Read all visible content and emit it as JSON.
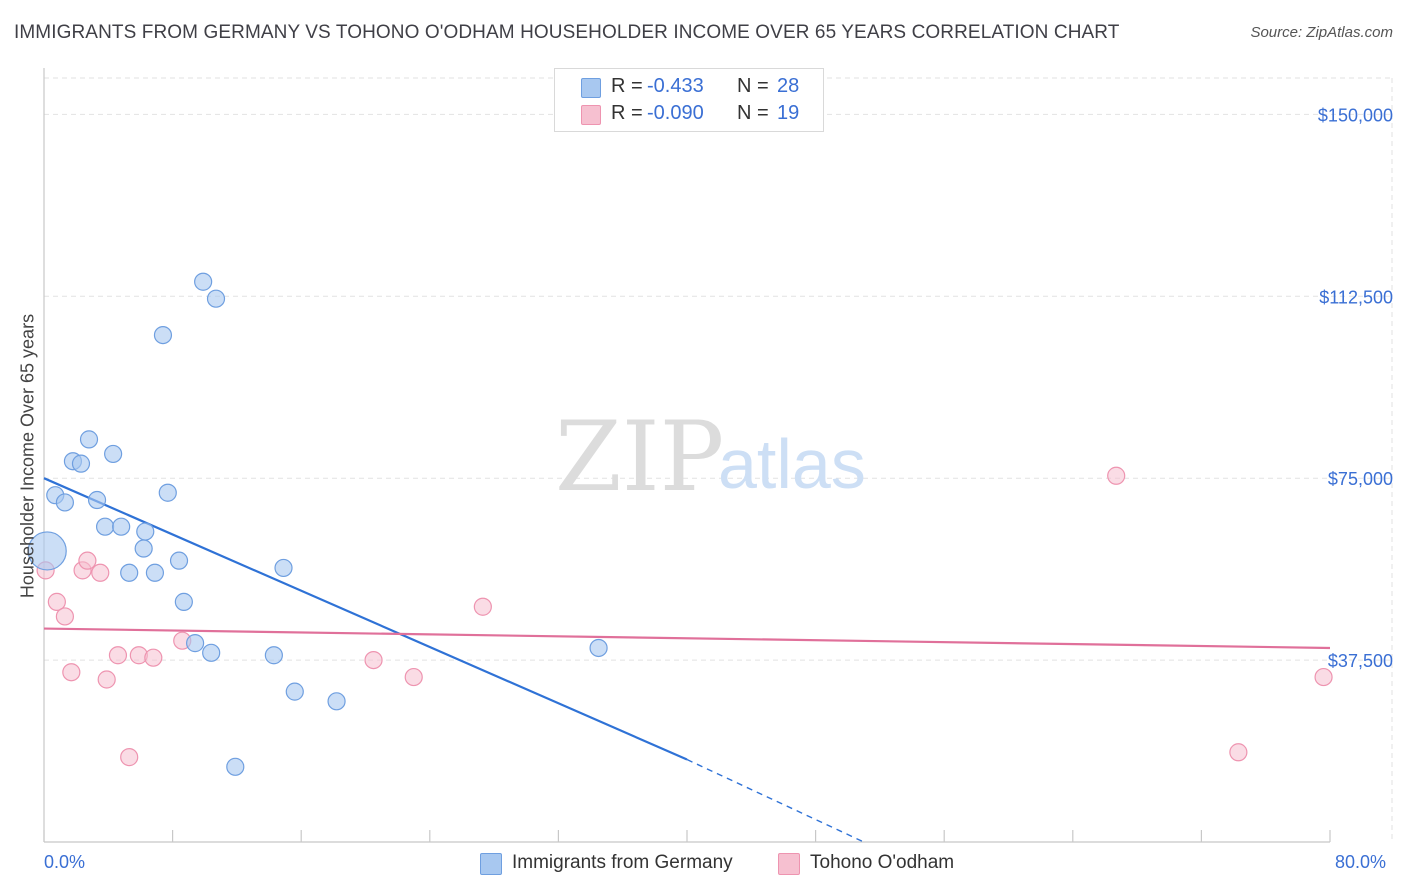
{
  "header": {
    "title": "IMMIGRANTS FROM GERMANY VS TOHONO O'ODHAM HOUSEHOLDER INCOME OVER 65 YEARS CORRELATION CHART",
    "source": "Source: ZipAtlas.com"
  },
  "legend_top": {
    "rows": [
      {
        "r_label": "R =",
        "r_value": "-0.433",
        "n_label": "N =",
        "n_value": "28"
      },
      {
        "r_label": "R =",
        "r_value": "-0.090",
        "n_label": "N =",
        "n_value": "19"
      }
    ]
  },
  "legend_bottom": {
    "items": [
      {
        "label": "Immigrants from Germany"
      },
      {
        "label": "Tohono O'odham"
      }
    ]
  },
  "watermark": {
    "zip": "ZIP",
    "atlas": "atlas"
  },
  "colors": {
    "blue_fill": "#a8c8f0",
    "blue_stroke": "#6f9fe0",
    "blue_line": "#2f72d6",
    "pink_fill": "#f6c0d0",
    "pink_stroke": "#ee94b0",
    "pink_line": "#e0709a",
    "tick_text": "#3a6fd4"
  },
  "chart_data": {
    "type": "scatter",
    "title": "IMMIGRANTS FROM GERMANY VS TOHONO O'ODHAM HOUSEHOLDER INCOME OVER 65 YEARS CORRELATION CHART",
    "xlabel": "",
    "ylabel": "Householder Income Over 65 years",
    "xlim": [
      0,
      80
    ],
    "ylim": [
      0,
      157500
    ],
    "x_tick_labels": [
      "0.0%",
      "80.0%"
    ],
    "y_ticks": [
      37500,
      75000,
      112500,
      150000
    ],
    "y_tick_labels": [
      "$37,500",
      "$75,000",
      "$112,500",
      "$150,000"
    ],
    "series": [
      {
        "name": "Immigrants from Germany",
        "r": -0.433,
        "n": 28,
        "points": [
          {
            "x": 0.2,
            "y": 60000,
            "big": true
          },
          {
            "x": 0.7,
            "y": 71500
          },
          {
            "x": 1.3,
            "y": 70000
          },
          {
            "x": 1.8,
            "y": 78500
          },
          {
            "x": 2.3,
            "y": 78000
          },
          {
            "x": 2.8,
            "y": 83000
          },
          {
            "x": 3.3,
            "y": 70500
          },
          {
            "x": 3.8,
            "y": 65000
          },
          {
            "x": 4.3,
            "y": 80000
          },
          {
            "x": 4.8,
            "y": 65000
          },
          {
            "x": 5.3,
            "y": 55500
          },
          {
            "x": 6.2,
            "y": 60500
          },
          {
            "x": 6.3,
            "y": 64000
          },
          {
            "x": 6.9,
            "y": 55500
          },
          {
            "x": 7.4,
            "y": 104500
          },
          {
            "x": 7.7,
            "y": 72000
          },
          {
            "x": 8.4,
            "y": 58000
          },
          {
            "x": 8.7,
            "y": 49500
          },
          {
            "x": 9.4,
            "y": 41000
          },
          {
            "x": 9.9,
            "y": 115500
          },
          {
            "x": 10.4,
            "y": 39000
          },
          {
            "x": 10.7,
            "y": 112000
          },
          {
            "x": 11.9,
            "y": 15500
          },
          {
            "x": 14.3,
            "y": 38500
          },
          {
            "x": 14.9,
            "y": 56500
          },
          {
            "x": 15.6,
            "y": 31000
          },
          {
            "x": 18.2,
            "y": 29000
          },
          {
            "x": 34.5,
            "y": 40000
          }
        ],
        "trend": {
          "x0": 0,
          "y0": 75000,
          "x1": 40.0,
          "y1": 17000,
          "dash_to_x": 51.0,
          "dash_to_y": 0
        }
      },
      {
        "name": "Tohono O'odham",
        "r": -0.09,
        "n": 19,
        "points": [
          {
            "x": 0.1,
            "y": 56000
          },
          {
            "x": 0.8,
            "y": 49500
          },
          {
            "x": 1.3,
            "y": 46500
          },
          {
            "x": 1.7,
            "y": 35000
          },
          {
            "x": 2.4,
            "y": 56000
          },
          {
            "x": 2.7,
            "y": 58000
          },
          {
            "x": 3.5,
            "y": 55500
          },
          {
            "x": 3.9,
            "y": 33500
          },
          {
            "x": 4.6,
            "y": 38500
          },
          {
            "x": 5.3,
            "y": 17500
          },
          {
            "x": 5.9,
            "y": 38500
          },
          {
            "x": 6.8,
            "y": 38000
          },
          {
            "x": 8.6,
            "y": 41500
          },
          {
            "x": 20.5,
            "y": 37500
          },
          {
            "x": 23.0,
            "y": 34000
          },
          {
            "x": 27.3,
            "y": 48500
          },
          {
            "x": 66.7,
            "y": 75500
          },
          {
            "x": 74.3,
            "y": 18500
          },
          {
            "x": 79.6,
            "y": 34000
          }
        ],
        "trend": {
          "x0": 0,
          "y0": 44000,
          "x1": 80.0,
          "y1": 40000
        }
      }
    ]
  }
}
